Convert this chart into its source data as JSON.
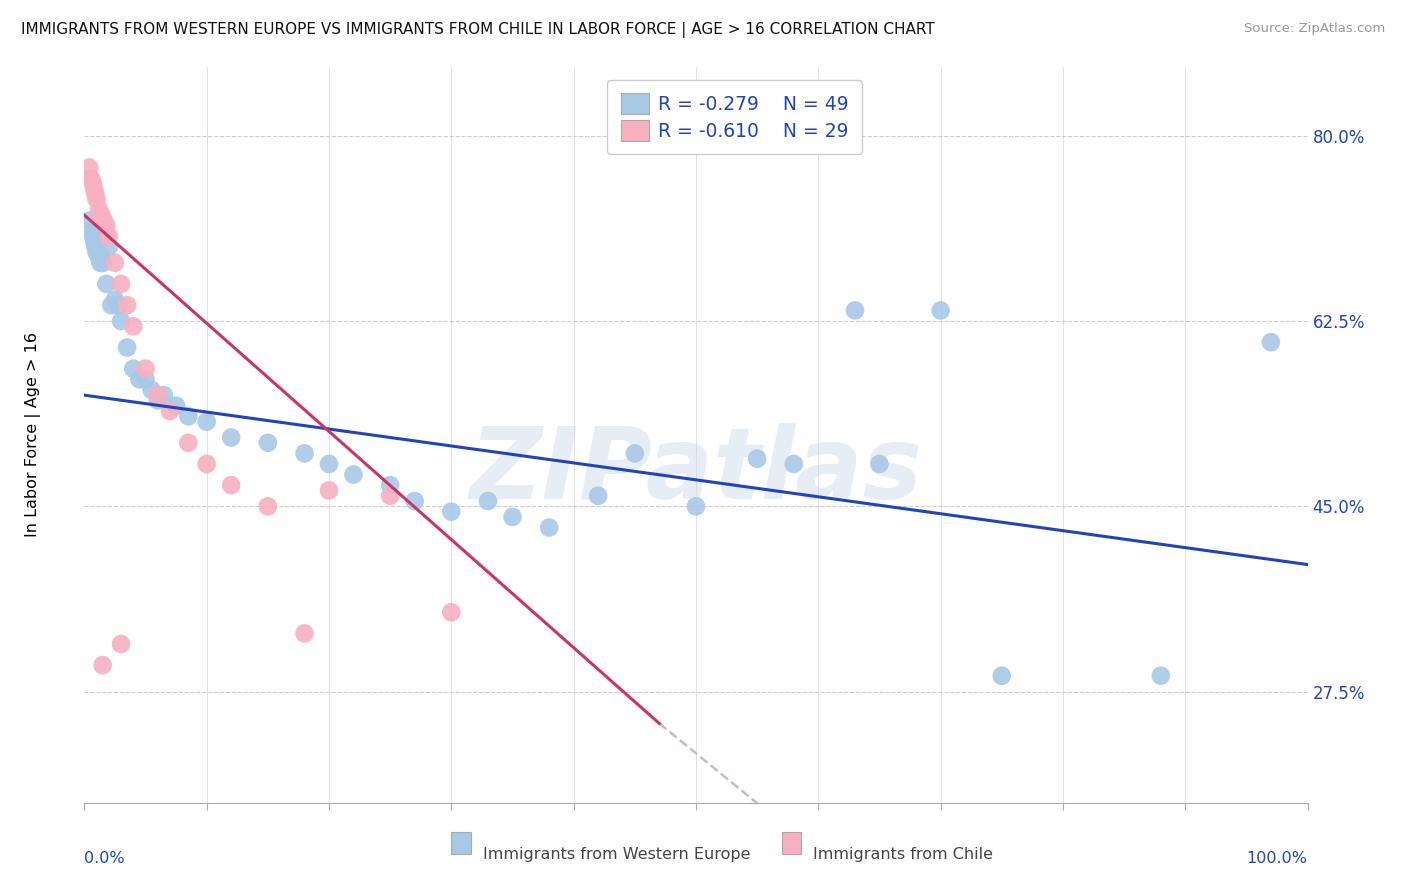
{
  "title": "IMMIGRANTS FROM WESTERN EUROPE VS IMMIGRANTS FROM CHILE IN LABOR FORCE | AGE > 16 CORRELATION CHART",
  "source": "Source: ZipAtlas.com",
  "ylabel": "In Labor Force | Age > 16",
  "yticks_pct": [
    27.5,
    45.0,
    62.5,
    80.0
  ],
  "ytick_labels": [
    "27.5%",
    "45.0%",
    "62.5%",
    "80.0%"
  ],
  "xlim": [
    0.0,
    1.0
  ],
  "ylim": [
    0.17,
    0.865
  ],
  "blue_R": "-0.279",
  "blue_N": "49",
  "pink_R": "-0.610",
  "pink_N": "29",
  "blue_dot_color": "#a8c8e8",
  "pink_dot_color": "#f8b0c0",
  "blue_line_color": "#2244bb",
  "pink_line_color": "#cc3366",
  "legend_text_color": "#2244bb",
  "watermark": "ZIPatlas",
  "blue_x": [
    0.005,
    0.006,
    0.007,
    0.008,
    0.009,
    0.01,
    0.011,
    0.012,
    0.013,
    0.014,
    0.015,
    0.018,
    0.02,
    0.022,
    0.025,
    0.028,
    0.03,
    0.035,
    0.04,
    0.045,
    0.05,
    0.055,
    0.06,
    0.065,
    0.075,
    0.085,
    0.1,
    0.12,
    0.15,
    0.18,
    0.2,
    0.22,
    0.25,
    0.27,
    0.3,
    0.33,
    0.35,
    0.38,
    0.42,
    0.45,
    0.5,
    0.55,
    0.58,
    0.63,
    0.65,
    0.7,
    0.75,
    0.88,
    0.97
  ],
  "blue_y": [
    0.72,
    0.71,
    0.705,
    0.7,
    0.695,
    0.69,
    0.69,
    0.685,
    0.68,
    0.685,
    0.68,
    0.66,
    0.695,
    0.64,
    0.645,
    0.64,
    0.625,
    0.6,
    0.58,
    0.57,
    0.57,
    0.56,
    0.55,
    0.555,
    0.545,
    0.535,
    0.53,
    0.515,
    0.51,
    0.5,
    0.49,
    0.48,
    0.47,
    0.455,
    0.445,
    0.455,
    0.44,
    0.43,
    0.46,
    0.5,
    0.45,
    0.495,
    0.49,
    0.635,
    0.49,
    0.635,
    0.29,
    0.29,
    0.605
  ],
  "pink_x": [
    0.004,
    0.005,
    0.006,
    0.007,
    0.008,
    0.009,
    0.01,
    0.012,
    0.014,
    0.016,
    0.018,
    0.02,
    0.025,
    0.03,
    0.035,
    0.04,
    0.05,
    0.06,
    0.07,
    0.085,
    0.1,
    0.12,
    0.15,
    0.18,
    0.2,
    0.25,
    0.3,
    0.015,
    0.03
  ],
  "pink_y": [
    0.77,
    0.76,
    0.758,
    0.755,
    0.75,
    0.745,
    0.74,
    0.73,
    0.725,
    0.72,
    0.715,
    0.705,
    0.68,
    0.66,
    0.64,
    0.62,
    0.58,
    0.555,
    0.54,
    0.51,
    0.49,
    0.47,
    0.45,
    0.33,
    0.465,
    0.46,
    0.35,
    0.3,
    0.32
  ],
  "blue_trend": [
    0.0,
    1.0,
    0.555,
    0.395
  ],
  "pink_trend_solid_x0": 0.0,
  "pink_trend_solid_x1": 0.47,
  "pink_trend_solid_y0": 0.725,
  "pink_trend_solid_y1": 0.245,
  "pink_trend_dash_x0": 0.47,
  "pink_trend_dash_x1": 0.73,
  "pink_trend_dash_y0": 0.245,
  "pink_trend_dash_y1": 0.0,
  "xtick_positions": [
    0.0,
    0.1,
    0.2,
    0.3,
    0.4,
    0.5,
    0.6,
    0.7,
    0.8,
    0.9,
    1.0
  ],
  "grid_vlines": [
    0.1,
    0.2,
    0.3,
    0.4,
    0.5,
    0.6,
    0.7,
    0.8,
    0.9,
    1.0
  ]
}
